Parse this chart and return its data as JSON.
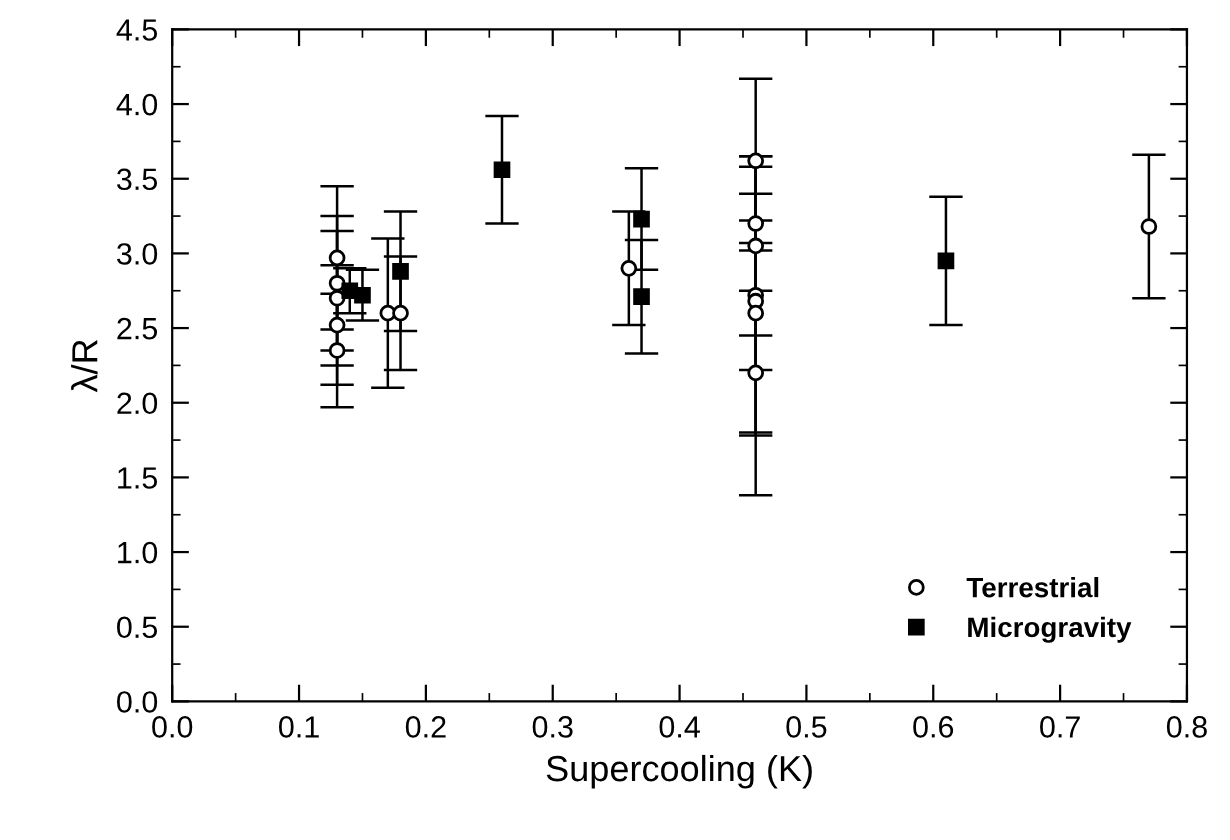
{
  "chart_data": {
    "type": "scatter",
    "xlabel": "Supercooling (K)",
    "ylabel": "λ/R",
    "xlim": [
      0.0,
      0.8
    ],
    "xticks": [
      {
        "value": 0,
        "label": "0.0"
      },
      0.1,
      0.2,
      0.3,
      0.4,
      0.5,
      0.6,
      0.7,
      0.8
    ],
    "ylim": [
      0.0,
      4.5
    ],
    "yticks": [
      {
        "value": 0,
        "label": "0.0"
      },
      0.5,
      {
        "value": 1,
        "label": "1.0"
      },
      1.5,
      {
        "value": 2,
        "label": "2.0"
      },
      2.5,
      {
        "value": 3,
        "label": "3.0"
      },
      3.5,
      {
        "value": 4,
        "label": "4.0"
      },
      4.5
    ],
    "grid": false,
    "legend": "bottom right",
    "series": [
      {
        "name": "Terrestrial",
        "color": "#000000",
        "marker": "circle",
        "x": [
          0.13,
          0.13,
          0.13,
          0.13,
          0.13,
          0.17,
          0.18,
          0.36,
          0.46,
          0.46,
          0.46,
          0.46,
          0.46,
          0.46,
          0.46,
          0.77
        ],
        "values": [
          2.97,
          2.8,
          2.7,
          2.52,
          2.35,
          2.6,
          2.6,
          2.9,
          3.62,
          3.2,
          3.05,
          2.72,
          2.68,
          2.6,
          2.2,
          3.18
        ],
        "errors": [
          0.48,
          0.45,
          0.45,
          0.4,
          0.38,
          0.5,
          0.38,
          0.38,
          0.55,
          0.45,
          0.6,
          0.5,
          0.9,
          0.8,
          0.82,
          0.48
        ]
      },
      {
        "name": "Microgravity",
        "color": "#000000",
        "marker": "square",
        "x": [
          0.14,
          0.15,
          0.18,
          0.26,
          0.37,
          0.37,
          0.61
        ],
        "values": [
          2.75,
          2.72,
          2.88,
          3.56,
          3.23,
          2.71,
          2.95
        ],
        "errors": [
          0.15,
          0.17,
          0.4,
          0.36,
          0.34,
          0.38,
          0.43
        ]
      }
    ]
  }
}
